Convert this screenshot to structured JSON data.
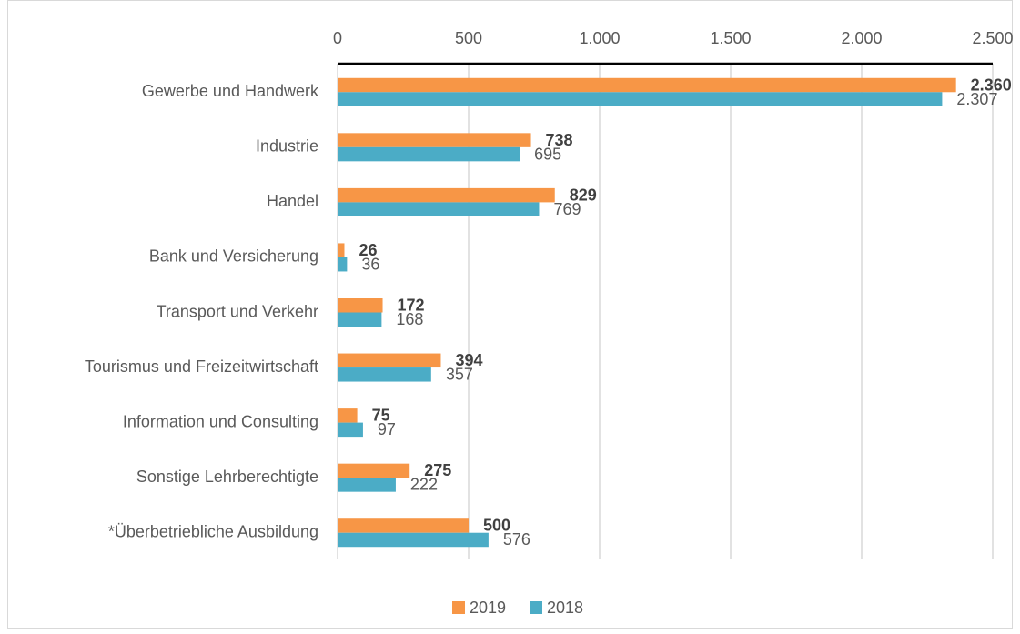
{
  "chart_data": {
    "type": "hbar",
    "categories": [
      "Gewerbe und Handwerk",
      "Industrie",
      "Handel",
      "Bank und Versicherung",
      "Transport und Verkehr",
      "Tourismus und Freizeitwirtschaft",
      "Information und Consulting",
      "Sonstige Lehrberechtigte",
      "*Überbetriebliche Ausbildung"
    ],
    "series": [
      {
        "name": "2019",
        "color": "#f79646",
        "values": [
          2360,
          738,
          829,
          26,
          172,
          394,
          75,
          275,
          500
        ],
        "value_labels": [
          "2.360",
          "738",
          "829",
          "26",
          "172",
          "394",
          "75",
          "275",
          "500"
        ]
      },
      {
        "name": "2018",
        "color": "#4bacc6",
        "values": [
          2307,
          695,
          769,
          36,
          168,
          357,
          97,
          222,
          576
        ],
        "value_labels": [
          "2.307",
          "695",
          "769",
          "36",
          "168",
          "357",
          "97",
          "222",
          "576"
        ]
      }
    ],
    "xlim": [
      0,
      2500
    ],
    "xticks": [
      0,
      500,
      {
        "value": 1000,
        "label": "1.000"
      },
      {
        "value": 1500,
        "label": "1.500"
      },
      {
        "value": 2000,
        "label": "2.000"
      },
      {
        "value": 2500,
        "label": "2.500"
      }
    ],
    "grid": true,
    "legend": "bottom"
  }
}
